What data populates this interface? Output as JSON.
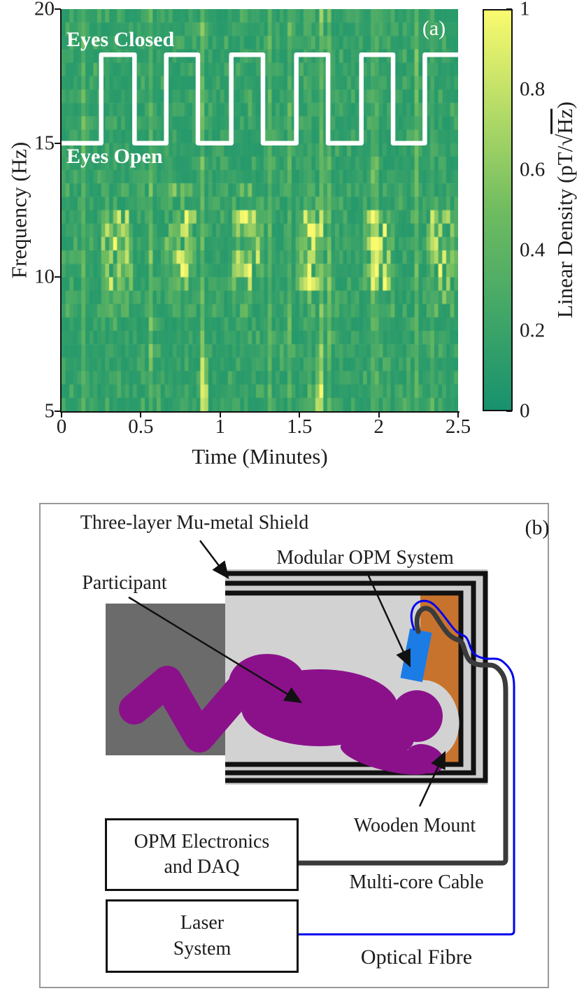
{
  "panel_a": {
    "tag": "(a)",
    "eyes_closed_label": "Eyes Closed",
    "eyes_open_label": "Eyes Open",
    "xlabel": "Time (Minutes)",
    "ylabel": "Frequency (Hz)",
    "x_tick_labels": [
      "0",
      "0.5",
      "1",
      "1.5",
      "2",
      "2.5"
    ],
    "x_tick_values": [
      0,
      0.5,
      1,
      1.5,
      2,
      2.5
    ],
    "y_tick_labels": [
      "5",
      "10",
      "15",
      "20"
    ],
    "y_tick_values": [
      5,
      10,
      15,
      20
    ],
    "wave_color": "#ffffff",
    "colorbar": {
      "tick_labels": [
        "0",
        "0.2",
        "0.4",
        "0.6",
        "0.8",
        "1"
      ],
      "tick_values": [
        0,
        0.2,
        0.4,
        0.6,
        0.8,
        1
      ],
      "label_prefix": "Linear Density (pT/",
      "radical": "√",
      "radicand": "Hz",
      "label_suffix": ")"
    }
  },
  "chart_data": {
    "type": "heatmap",
    "title": "",
    "xlabel": "Time (Minutes)",
    "ylabel": "Frequency (Hz)",
    "x_range_minutes": [
      0,
      2.5
    ],
    "y_range_hz": [
      5,
      20
    ],
    "colorbar_label": "Linear Density (pT/√Hz)",
    "colorbar_range": [
      0,
      1
    ],
    "colormap_stops": [
      [
        0,
        "#17926E"
      ],
      [
        0.5,
        "#6FBC60"
      ],
      [
        1,
        "#FAFA6E"
      ]
    ],
    "grid": {
      "n_time_bins": 100,
      "n_freq_bins": 30
    },
    "seed": 42,
    "stimulus_wave": {
      "low_hz": 15,
      "high_hz": 18.3,
      "low_label": "Eyes Open",
      "high_label": "Eyes Closed",
      "high_intervals_minutes": [
        [
          0.25,
          0.46
        ],
        [
          0.66,
          0.86
        ],
        [
          1.07,
          1.27
        ],
        [
          1.48,
          1.68
        ],
        [
          1.89,
          2.09
        ],
        [
          2.29,
          2.5
        ]
      ]
    },
    "features": {
      "baseline_density_range": [
        0.1,
        0.45
      ],
      "alpha_band_hz": [
        9.5,
        12.5
      ],
      "alpha_bursts_during": "eyes-closed intervals",
      "low_freq_streaks_minutes": [
        0.9,
        1.63
      ]
    }
  },
  "panel_b": {
    "tag": "(b)",
    "labels": {
      "shield": "Three-layer Mu-metal Shield",
      "opm": "Modular OPM System",
      "participant": "Participant",
      "mount": "Wooden Mount",
      "electronics_line1": "OPM Electronics",
      "electronics_line2": "and DAQ",
      "laser_line1": "Laser",
      "laser_line2": "System",
      "cable": "Multi-core Cable",
      "fibre": "Optical Fibre"
    },
    "colors": {
      "bed": "#6B6B6B",
      "shield_gray": "#CDCDCD",
      "interior": "#D2D2D2",
      "mount": "#C8732D",
      "participant": "#8B118B",
      "sensor": "#1B7CE6",
      "fibre": "#0000EE",
      "cable": "#3B3B3B",
      "border": "#999999"
    }
  }
}
